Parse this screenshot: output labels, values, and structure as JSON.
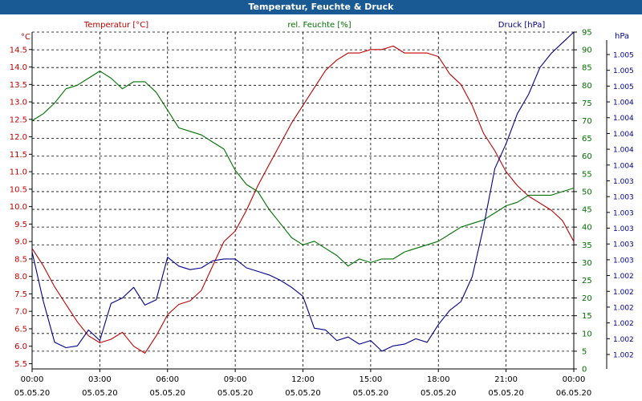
{
  "title": "Temperatur, Feuchte & Druck",
  "colors": {
    "title_bar": "#1a5a94",
    "temperature": "#c00000",
    "humidity": "#007000",
    "pressure": "#00008b",
    "axis": "#000000",
    "grid": "#000000"
  },
  "chart_data": {
    "type": "line",
    "title": "Temperatur, Feuchte & Druck",
    "grid": true,
    "x_ticks": [
      {
        "time": "00:00",
        "date": "05.05.20"
      },
      {
        "time": "03:00",
        "date": "05.05.20"
      },
      {
        "time": "06:00",
        "date": "05.05.20"
      },
      {
        "time": "09:00",
        "date": "05.05.20"
      },
      {
        "time": "12:00",
        "date": "05.05.20"
      },
      {
        "time": "15:00",
        "date": "05.05.20"
      },
      {
        "time": "18:00",
        "date": "05.05.20"
      },
      {
        "time": "21:00",
        "date": "05.05.20"
      },
      {
        "time": "00:00",
        "date": "06.05.20"
      }
    ],
    "xlim": [
      0,
      24
    ],
    "axes": {
      "left": {
        "label": "Temperatur [°C]",
        "unit": "°C",
        "ylim": [
          5.35,
          15.0
        ],
        "ticks": [
          "5.5",
          "6.0",
          "6.5",
          "7.0",
          "7.5",
          "8.0",
          "8.5",
          "9.0",
          "9.5",
          "10.0",
          "10.5",
          "11.0",
          "11.5",
          "12.0",
          "12.5",
          "13.0",
          "13.5",
          "14.0",
          "14.5"
        ]
      },
      "right1": {
        "label": "rel. Feuchte [%]",
        "unit": "%",
        "ylim": [
          0,
          95
        ],
        "ticks": [
          "0",
          "5",
          "10",
          "15",
          "20",
          "25",
          "30",
          "35",
          "40",
          "45",
          "50",
          "55",
          "60",
          "65",
          "70",
          "75",
          "80",
          "85",
          "90",
          "95"
        ]
      },
      "right2": {
        "label": "Druck [hPa]",
        "unit": "hPa",
        "ylim": [
          0,
          19
        ],
        "ticks": [
          "1.002",
          "1.002",
          "1.002",
          "1.002",
          "1.002",
          "1.002",
          "1.003",
          "1.003",
          "1.003",
          "1.003",
          "1.003",
          "1.003",
          "1.004",
          "1.004",
          "1.004",
          "1.004",
          "1.004",
          "1.005",
          "1.005",
          "1.005"
        ]
      }
    },
    "series": [
      {
        "name": "Temperatur [°C]",
        "axis": "left",
        "x": [
          0,
          0.5,
          1,
          1.5,
          2,
          2.5,
          3,
          3.5,
          4,
          4.5,
          5,
          5.5,
          6,
          6.5,
          7,
          7.5,
          8,
          8.5,
          9,
          9.5,
          10,
          10.5,
          11,
          11.5,
          12,
          12.5,
          13,
          13.5,
          14,
          14.5,
          15,
          15.5,
          16,
          16.5,
          17,
          17.5,
          18,
          18.5,
          19,
          19.5,
          20,
          20.5,
          21,
          21.5,
          22,
          22.5,
          23,
          23.5,
          24
        ],
        "values": [
          8.8,
          8.3,
          7.7,
          7.2,
          6.7,
          6.3,
          6.1,
          6.2,
          6.4,
          6.0,
          5.8,
          6.3,
          6.9,
          7.2,
          7.3,
          7.6,
          8.3,
          9.0,
          9.3,
          9.9,
          10.6,
          11.2,
          11.8,
          12.4,
          12.9,
          13.4,
          13.9,
          14.2,
          14.4,
          14.4,
          14.5,
          14.5,
          14.6,
          14.4,
          14.4,
          14.4,
          14.3,
          13.8,
          13.5,
          12.9,
          12.1,
          11.6,
          11.0,
          10.6,
          10.3,
          10.1,
          9.9,
          9.6,
          9.0
        ]
      },
      {
        "name": "rel. Feuchte [%]",
        "axis": "right1",
        "x": [
          0,
          0.5,
          1,
          1.5,
          2,
          2.5,
          3,
          3.5,
          4,
          4.5,
          5,
          5.5,
          6,
          6.5,
          7,
          7.5,
          8,
          8.5,
          9,
          9.5,
          10,
          10.5,
          11,
          11.5,
          12,
          12.5,
          13,
          13.5,
          14,
          14.5,
          15,
          15.5,
          16,
          16.5,
          17,
          17.5,
          18,
          18.5,
          19,
          19.5,
          20,
          20.5,
          21,
          21.5,
          22,
          22.5,
          23,
          23.5,
          24
        ],
        "values": [
          70,
          72,
          75,
          79,
          80,
          82,
          84,
          82,
          79,
          81,
          81,
          78,
          73,
          68,
          67,
          66,
          64,
          62,
          56,
          52,
          50,
          45,
          41,
          37,
          35,
          36,
          34,
          32,
          29,
          31,
          30,
          31,
          31,
          33,
          34,
          35,
          36,
          38,
          40,
          41,
          42,
          44,
          46,
          47,
          49,
          49,
          49,
          50,
          51
        ]
      },
      {
        "name": "Druck [hPa]",
        "axis": "right2",
        "x": [
          0,
          0.5,
          1,
          1.5,
          2,
          2.5,
          3,
          3.5,
          4,
          4.5,
          5,
          5.5,
          6,
          6.5,
          7,
          7.5,
          8,
          8.5,
          9,
          9.5,
          10,
          10.5,
          11,
          11.5,
          12,
          12.5,
          13,
          13.5,
          14,
          14.5,
          15,
          15.5,
          16,
          16.5,
          17,
          17.5,
          18,
          18.5,
          19,
          19.5,
          20,
          20.5,
          21,
          21.5,
          22,
          22.5,
          23,
          23.5,
          24
        ],
        "values": [
          6.6,
          3.8,
          1.5,
          1.2,
          1.3,
          2.2,
          1.6,
          3.7,
          4.0,
          4.6,
          3.6,
          3.9,
          6.3,
          5.8,
          5.6,
          5.7,
          6.1,
          6.2,
          6.2,
          5.7,
          5.5,
          5.3,
          5.0,
          4.6,
          4.1,
          2.3,
          2.2,
          1.6,
          1.8,
          1.4,
          1.6,
          1.0,
          1.3,
          1.4,
          1.7,
          1.5,
          2.5,
          3.3,
          3.8,
          5.2,
          8.0,
          11.3,
          12.7,
          14.4,
          15.5,
          17.0,
          17.8,
          18.4,
          19.0
        ]
      }
    ]
  }
}
